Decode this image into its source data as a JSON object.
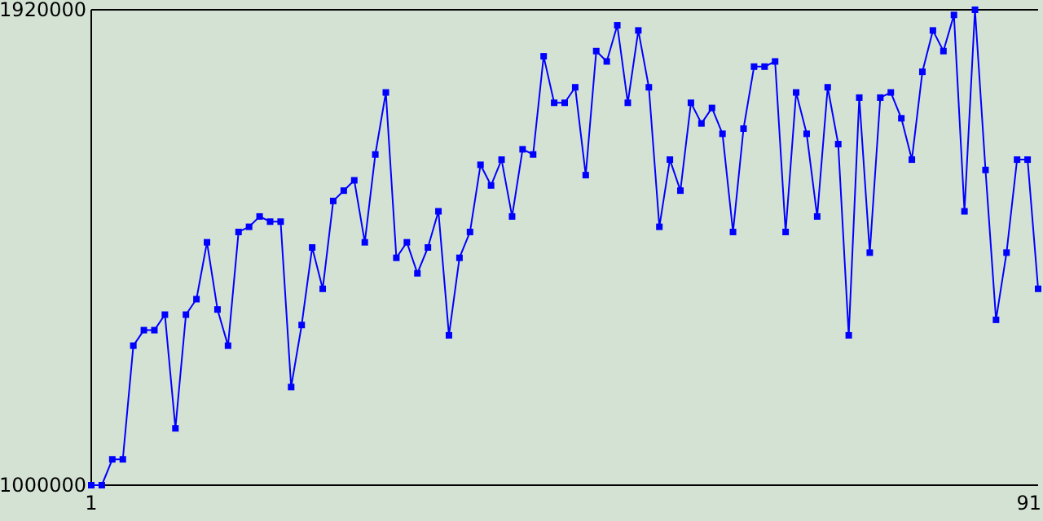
{
  "chart_data": {
    "type": "line",
    "x": [
      1,
      2,
      3,
      4,
      5,
      6,
      7,
      8,
      9,
      10,
      11,
      12,
      13,
      14,
      15,
      16,
      17,
      18,
      19,
      20,
      21,
      22,
      23,
      24,
      25,
      26,
      27,
      28,
      29,
      30,
      31,
      32,
      33,
      34,
      35,
      36,
      37,
      38,
      39,
      40,
      41,
      42,
      43,
      44,
      45,
      46,
      47,
      48,
      49,
      50,
      51,
      52,
      53,
      54,
      55,
      56,
      57,
      58,
      59,
      60,
      61,
      62,
      63,
      64,
      65,
      66,
      67,
      68,
      69,
      70,
      71,
      72,
      73,
      74,
      75,
      76,
      77,
      78,
      79,
      80,
      81,
      82,
      83,
      84,
      85,
      86,
      87,
      88,
      89,
      90,
      91
    ],
    "series": [
      {
        "color": "#0000ff",
        "values": [
          1000000,
          1000000,
          1050000,
          1050000,
          1270000,
          1300000,
          1300000,
          1330000,
          1110000,
          1330000,
          1360000,
          1470000,
          1340000,
          1270000,
          1490000,
          1500000,
          1520000,
          1510000,
          1510000,
          1190000,
          1310000,
          1460000,
          1380000,
          1550000,
          1570000,
          1590000,
          1470000,
          1640000,
          1760000,
          1440000,
          1470000,
          1410000,
          1460000,
          1530000,
          1290000,
          1440000,
          1490000,
          1620000,
          1580000,
          1630000,
          1520000,
          1650000,
          1640000,
          1830000,
          1740000,
          1740000,
          1770000,
          1600000,
          1840000,
          1820000,
          1890000,
          1740000,
          1880000,
          1770000,
          1500000,
          1630000,
          1570000,
          1740000,
          1700000,
          1730000,
          1680000,
          1490000,
          1690000,
          1810000,
          1810000,
          1820000,
          1490000,
          1760000,
          1680000,
          1520000,
          1770000,
          1660000,
          1290000,
          1750000,
          1450000,
          1750000,
          1760000,
          1710000,
          1630000,
          1800000,
          1880000,
          1840000,
          1910000,
          1530000,
          1920000,
          1610000,
          1320000,
          1450000,
          1630000,
          1630000,
          1380000
        ]
      }
    ],
    "xlim": [
      1,
      91
    ],
    "xticks": [
      1,
      91
    ],
    "ylim": [
      1000000,
      1920000
    ],
    "yticks": [
      1000000,
      1920000
    ],
    "grid": false,
    "marker": "square",
    "line_style": "solid"
  }
}
